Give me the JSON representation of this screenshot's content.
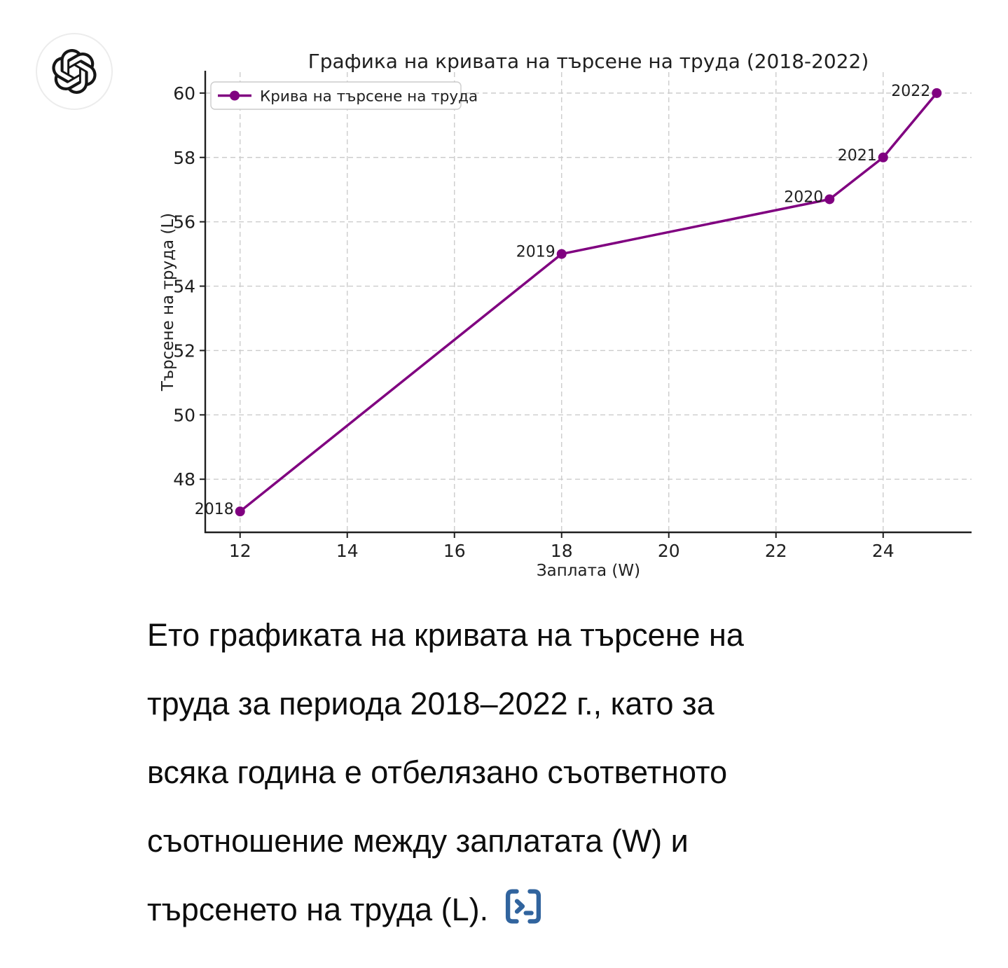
{
  "assistant": {
    "avatar_icon": "openai-logo-icon"
  },
  "chart_data": {
    "type": "line",
    "title": "Графика на кривата на търсене на труда (2018-2022)",
    "xlabel": "Заплата (W)",
    "ylabel": "Търсене на труда (L)",
    "legend_position": "upper left",
    "grid": true,
    "line_color": "#800080",
    "axis_color": "#1f1f1f",
    "grid_color": "#cccccc",
    "xlim": [
      11.35,
      25.65
    ],
    "ylim": [
      46.35,
      60.65
    ],
    "xticks": [
      12,
      14,
      16,
      18,
      20,
      22,
      24
    ],
    "yticks": [
      48,
      50,
      52,
      54,
      56,
      58,
      60
    ],
    "series": [
      {
        "name": "Крива на търсене на труда",
        "x": [
          12,
          18,
          23,
          24,
          25
        ],
        "values": [
          47,
          55,
          56.7,
          58,
          60
        ],
        "point_labels": [
          "2018",
          "2019",
          "2020",
          "2021",
          "2022"
        ]
      }
    ]
  },
  "message": {
    "lines": [
      "Ето графиката на кривата на търсене на",
      "труда за периода 2018–2022 г., като за",
      "всяка година е отбелязано съответното",
      "съотношение между заплатата (W) и",
      "търсенето на труда (L)."
    ],
    "source_icon": "view-source-terminal-icon",
    "source_icon_color": "#31649e"
  }
}
